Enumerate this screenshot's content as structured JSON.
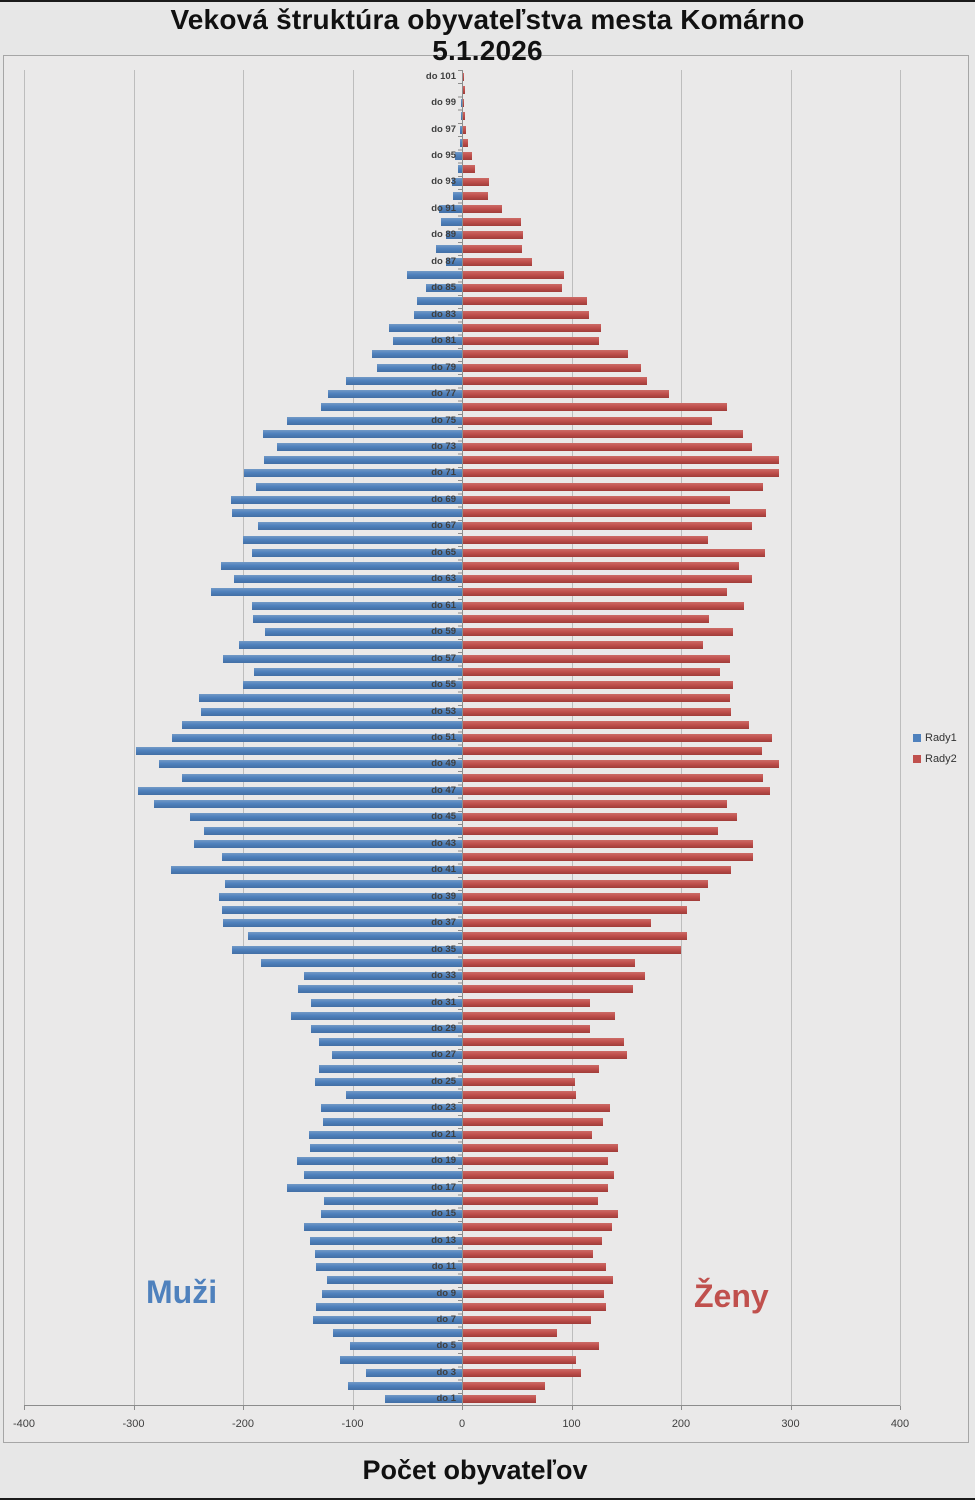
{
  "title": {
    "line1": "Veková štruktúra obyvateľstva mesta Komárno",
    "line2": "5.1.2026"
  },
  "xaxis_title": "Počet obyvateľov",
  "side_labels": {
    "men": "Muži",
    "women": "Ženy"
  },
  "legend": {
    "entries": [
      {
        "label": "Rady1",
        "color": "#4f81bd"
      },
      {
        "label": "Rady2",
        "color": "#c0504d"
      }
    ]
  },
  "colors": {
    "men_bar": "#4f81bd",
    "women_bar": "#c0504d",
    "gridline": "#bdbdbd",
    "axis": "#8c8c8c",
    "plot_background": "#eae9e9"
  },
  "chart_data": {
    "type": "bar",
    "subtype": "population-pyramid-horizontal",
    "title": "Veková štruktúra obyvateľstva mesta Komárno 5.1.2026",
    "xlabel": "Počet obyvateľov",
    "xlim": [
      -400,
      400
    ],
    "xticks": [
      -400,
      -300,
      -200,
      -100,
      0,
      100,
      200,
      300,
      400
    ],
    "grid": true,
    "legend_position": "right",
    "category_prefix": "do ",
    "category_label_every": 2,
    "ages": [
      101,
      100,
      99,
      98,
      97,
      96,
      95,
      94,
      93,
      92,
      91,
      90,
      89,
      88,
      87,
      86,
      85,
      84,
      83,
      82,
      81,
      80,
      79,
      78,
      77,
      76,
      75,
      74,
      73,
      72,
      71,
      70,
      69,
      68,
      67,
      66,
      65,
      64,
      63,
      62,
      61,
      60,
      59,
      58,
      57,
      56,
      55,
      54,
      53,
      52,
      51,
      50,
      49,
      48,
      47,
      46,
      45,
      44,
      43,
      42,
      41,
      40,
      39,
      38,
      37,
      36,
      35,
      34,
      33,
      32,
      31,
      30,
      29,
      28,
      27,
      26,
      25,
      24,
      23,
      22,
      21,
      20,
      19,
      18,
      17,
      16,
      15,
      14,
      13,
      12,
      11,
      10,
      9,
      8,
      7,
      6,
      5,
      4,
      3,
      2,
      1
    ],
    "series": [
      {
        "name": "Rady1",
        "label": "Muži",
        "color": "#4f81bd",
        "direction": "negative",
        "values": [
          0,
          0,
          1,
          1,
          2,
          2,
          6,
          4,
          9,
          8,
          21,
          19,
          15,
          24,
          15,
          50,
          33,
          41,
          44,
          67,
          63,
          82,
          78,
          106,
          122,
          129,
          160,
          182,
          169,
          181,
          199,
          188,
          211,
          210,
          186,
          200,
          192,
          220,
          208,
          229,
          192,
          191,
          180,
          204,
          218,
          190,
          200,
          240,
          238,
          256,
          265,
          298,
          277,
          256,
          296,
          281,
          248,
          236,
          245,
          219,
          266,
          216,
          222,
          219,
          218,
          195,
          210,
          184,
          144,
          150,
          138,
          156,
          138,
          131,
          119,
          131,
          134,
          106,
          129,
          127,
          140,
          139,
          151,
          144,
          160,
          126,
          129,
          144,
          139,
          134,
          133,
          123,
          128,
          133,
          136,
          118,
          102,
          111,
          88,
          104,
          70
        ]
      },
      {
        "name": "Rady2",
        "label": "Ženy",
        "color": "#c0504d",
        "direction": "positive",
        "values": [
          1,
          2,
          1,
          2,
          3,
          5,
          8,
          11,
          24,
          23,
          36,
          53,
          55,
          54,
          63,
          92,
          90,
          113,
          115,
          126,
          124,
          151,
          163,
          168,
          188,
          241,
          227,
          256,
          264,
          289,
          289,
          274,
          244,
          277,
          264,
          224,
          276,
          252,
          264,
          241,
          257,
          225,
          247,
          219,
          244,
          235,
          247,
          244,
          245,
          261,
          282,
          273,
          289,
          274,
          280,
          241,
          250,
          233,
          265,
          265,
          245,
          224,
          216,
          205,
          172,
          205,
          199,
          157,
          166,
          155,
          116,
          139,
          116,
          147,
          150,
          124,
          102,
          103,
          134,
          128,
          118,
          142,
          132,
          138,
          132,
          123,
          142,
          136,
          127,
          119,
          131,
          137,
          129,
          131,
          117,
          86,
          124,
          103,
          108,
          75,
          67
        ]
      }
    ]
  }
}
